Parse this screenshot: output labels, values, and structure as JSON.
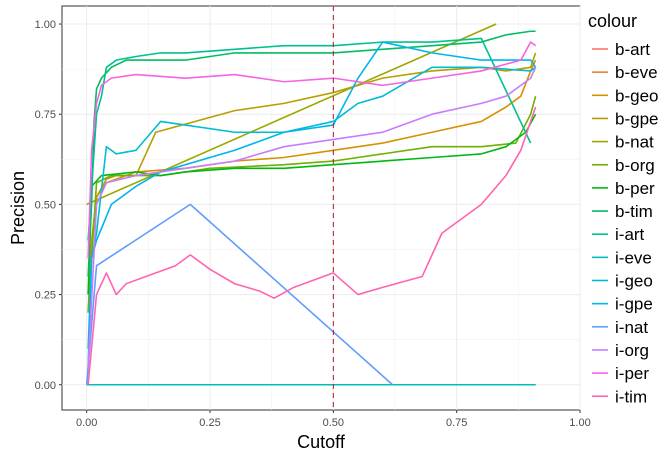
{
  "chart_data": {
    "type": "line",
    "xlabel": "Cutoff",
    "ylabel": "Precision",
    "xlim": [
      -0.05,
      1.0
    ],
    "ylim": [
      -0.07,
      1.05
    ],
    "x_ticks": [
      0.0,
      0.25,
      0.5,
      0.75,
      1.0
    ],
    "x_tick_labels": [
      "0.00",
      "0.25",
      "0.50",
      "0.75",
      "1.00"
    ],
    "y_ticks": [
      0.0,
      0.25,
      0.5,
      0.75,
      1.0
    ],
    "y_tick_labels": [
      "0.00",
      "0.25",
      "0.50",
      "0.75",
      "1.00"
    ],
    "grid": true,
    "vline": {
      "x": 0.5,
      "style": "dashed",
      "color": "#B2182B"
    },
    "legend": {
      "title": "colour",
      "position": "right"
    },
    "series": [
      {
        "name": "b-art",
        "color": "#F8766D",
        "points": [
          [
            0.0,
            0.0
          ],
          [
            0.91,
            0.0
          ]
        ]
      },
      {
        "name": "b-eve",
        "color": "#E9842C",
        "points": [
          [
            0.0,
            0.0
          ],
          [
            0.91,
            0.0
          ]
        ]
      },
      {
        "name": "b-geo",
        "color": "#D69100",
        "points": [
          [
            0.003,
            0.3
          ],
          [
            0.02,
            0.52
          ],
          [
            0.04,
            0.56
          ],
          [
            0.1,
            0.59
          ],
          [
            0.2,
            0.6
          ],
          [
            0.3,
            0.62
          ],
          [
            0.4,
            0.63
          ],
          [
            0.5,
            0.65
          ],
          [
            0.6,
            0.67
          ],
          [
            0.7,
            0.7
          ],
          [
            0.8,
            0.73
          ],
          [
            0.85,
            0.77
          ],
          [
            0.88,
            0.8
          ],
          [
            0.9,
            0.87
          ],
          [
            0.91,
            0.9
          ]
        ]
      },
      {
        "name": "b-gpe",
        "color": "#BC9D00",
        "points": [
          [
            0.003,
            0.2
          ],
          [
            0.01,
            0.4
          ],
          [
            0.02,
            0.52
          ],
          [
            0.04,
            0.57
          ],
          [
            0.06,
            0.58
          ],
          [
            0.1,
            0.58
          ],
          [
            0.14,
            0.7
          ],
          [
            0.3,
            0.76
          ],
          [
            0.4,
            0.78
          ],
          [
            0.5,
            0.81
          ],
          [
            0.6,
            0.85
          ],
          [
            0.7,
            0.87
          ],
          [
            0.8,
            0.88
          ],
          [
            0.85,
            0.87
          ],
          [
            0.9,
            0.88
          ],
          [
            0.91,
            0.92
          ]
        ]
      },
      {
        "name": "b-nat",
        "color": "#9CA700",
        "points": [
          [
            0.0,
            0.5
          ],
          [
            0.83,
            1.0
          ]
        ]
      },
      {
        "name": "b-org",
        "color": "#6FB000",
        "points": [
          [
            0.003,
            0.2
          ],
          [
            0.02,
            0.56
          ],
          [
            0.05,
            0.58
          ],
          [
            0.15,
            0.58
          ],
          [
            0.25,
            0.6
          ],
          [
            0.4,
            0.61
          ],
          [
            0.5,
            0.62
          ],
          [
            0.6,
            0.64
          ],
          [
            0.7,
            0.66
          ],
          [
            0.8,
            0.66
          ],
          [
            0.87,
            0.67
          ],
          [
            0.9,
            0.75
          ],
          [
            0.91,
            0.8
          ]
        ]
      },
      {
        "name": "b-per",
        "color": "#00B813",
        "points": [
          [
            0.003,
            0.25
          ],
          [
            0.01,
            0.55
          ],
          [
            0.03,
            0.58
          ],
          [
            0.1,
            0.59
          ],
          [
            0.15,
            0.58
          ],
          [
            0.2,
            0.59
          ],
          [
            0.3,
            0.6
          ],
          [
            0.4,
            0.6
          ],
          [
            0.5,
            0.61
          ],
          [
            0.6,
            0.62
          ],
          [
            0.7,
            0.63
          ],
          [
            0.8,
            0.64
          ],
          [
            0.85,
            0.66
          ],
          [
            0.89,
            0.7
          ],
          [
            0.91,
            0.75
          ]
        ]
      },
      {
        "name": "b-tim",
        "color": "#00BD61",
        "points": [
          [
            0.003,
            0.3
          ],
          [
            0.01,
            0.5
          ],
          [
            0.015,
            0.73
          ],
          [
            0.02,
            0.82
          ],
          [
            0.03,
            0.85
          ],
          [
            0.05,
            0.88
          ],
          [
            0.08,
            0.9
          ],
          [
            0.1,
            0.9
          ],
          [
            0.2,
            0.9
          ],
          [
            0.3,
            0.92
          ],
          [
            0.4,
            0.92
          ],
          [
            0.5,
            0.92
          ],
          [
            0.6,
            0.93
          ],
          [
            0.7,
            0.94
          ],
          [
            0.8,
            0.95
          ],
          [
            0.85,
            0.97
          ],
          [
            0.9,
            0.98
          ],
          [
            0.91,
            0.98
          ]
        ]
      },
      {
        "name": "i-art",
        "color": "#00C08E",
        "points": [
          [
            0.003,
            0.4
          ],
          [
            0.02,
            0.75
          ],
          [
            0.03,
            0.8
          ],
          [
            0.04,
            0.88
          ],
          [
            0.06,
            0.9
          ],
          [
            0.1,
            0.91
          ],
          [
            0.15,
            0.92
          ],
          [
            0.2,
            0.92
          ],
          [
            0.3,
            0.93
          ],
          [
            0.4,
            0.94
          ],
          [
            0.5,
            0.94
          ],
          [
            0.6,
            0.95
          ],
          [
            0.7,
            0.95
          ],
          [
            0.8,
            0.96
          ],
          [
            0.9,
            0.67
          ]
        ]
      },
      {
        "name": "i-eve",
        "color": "#00C0B5",
        "points": [
          [
            0.0,
            0.0
          ],
          [
            0.91,
            0.0
          ]
        ]
      },
      {
        "name": "i-geo",
        "color": "#00BDD4",
        "points": [
          [
            0.003,
            0.1
          ],
          [
            0.01,
            0.35
          ],
          [
            0.02,
            0.42
          ],
          [
            0.04,
            0.66
          ],
          [
            0.06,
            0.64
          ],
          [
            0.1,
            0.65
          ],
          [
            0.15,
            0.73
          ],
          [
            0.2,
            0.72
          ],
          [
            0.3,
            0.7
          ],
          [
            0.4,
            0.7
          ],
          [
            0.5,
            0.73
          ],
          [
            0.55,
            0.78
          ],
          [
            0.6,
            0.8
          ],
          [
            0.7,
            0.88
          ],
          [
            0.8,
            0.88
          ],
          [
            0.9,
            0.87
          ],
          [
            0.91,
            0.88
          ]
        ]
      },
      {
        "name": "i-gpe",
        "color": "#00B5EE",
        "points": [
          [
            0.003,
            0.05
          ],
          [
            0.01,
            0.35
          ],
          [
            0.02,
            0.4
          ],
          [
            0.05,
            0.5
          ],
          [
            0.1,
            0.55
          ],
          [
            0.15,
            0.59
          ],
          [
            0.3,
            0.65
          ],
          [
            0.4,
            0.7
          ],
          [
            0.5,
            0.72
          ],
          [
            0.55,
            0.85
          ],
          [
            0.6,
            0.95
          ],
          [
            0.7,
            0.92
          ],
          [
            0.8,
            0.9
          ],
          [
            0.9,
            0.9
          ],
          [
            0.91,
            0.88
          ]
        ]
      },
      {
        "name": "i-nat",
        "color": "#619CFF",
        "points": [
          [
            0.0,
            0.0
          ],
          [
            0.02,
            0.33
          ],
          [
            0.21,
            0.5
          ],
          [
            0.62,
            0.0
          ]
        ]
      },
      {
        "name": "i-org",
        "color": "#C77CFF",
        "points": [
          [
            0.003,
            0.05
          ],
          [
            0.02,
            0.5
          ],
          [
            0.04,
            0.56
          ],
          [
            0.1,
            0.58
          ],
          [
            0.2,
            0.6
          ],
          [
            0.3,
            0.62
          ],
          [
            0.4,
            0.66
          ],
          [
            0.5,
            0.68
          ],
          [
            0.6,
            0.7
          ],
          [
            0.7,
            0.75
          ],
          [
            0.8,
            0.78
          ],
          [
            0.85,
            0.8
          ],
          [
            0.9,
            0.85
          ],
          [
            0.91,
            0.88
          ]
        ]
      },
      {
        "name": "i-per",
        "color": "#F564E3",
        "points": [
          [
            0.003,
            0.35
          ],
          [
            0.01,
            0.65
          ],
          [
            0.02,
            0.78
          ],
          [
            0.03,
            0.83
          ],
          [
            0.05,
            0.85
          ],
          [
            0.1,
            0.86
          ],
          [
            0.2,
            0.85
          ],
          [
            0.3,
            0.86
          ],
          [
            0.4,
            0.84
          ],
          [
            0.5,
            0.85
          ],
          [
            0.6,
            0.83
          ],
          [
            0.7,
            0.85
          ],
          [
            0.8,
            0.87
          ],
          [
            0.88,
            0.9
          ],
          [
            0.9,
            0.95
          ],
          [
            0.91,
            0.94
          ]
        ]
      },
      {
        "name": "i-tim",
        "color": "#FF64B0",
        "points": [
          [
            0.003,
            0.0
          ],
          [
            0.02,
            0.25
          ],
          [
            0.04,
            0.31
          ],
          [
            0.06,
            0.25
          ],
          [
            0.08,
            0.28
          ],
          [
            0.12,
            0.3
          ],
          [
            0.18,
            0.33
          ],
          [
            0.21,
            0.36
          ],
          [
            0.25,
            0.32
          ],
          [
            0.3,
            0.28
          ],
          [
            0.35,
            0.26
          ],
          [
            0.38,
            0.24
          ],
          [
            0.42,
            0.27
          ],
          [
            0.5,
            0.31
          ],
          [
            0.55,
            0.25
          ],
          [
            0.6,
            0.27
          ],
          [
            0.68,
            0.3
          ],
          [
            0.72,
            0.42
          ],
          [
            0.8,
            0.5
          ],
          [
            0.85,
            0.58
          ],
          [
            0.88,
            0.65
          ],
          [
            0.91,
            0.77
          ]
        ]
      }
    ]
  }
}
